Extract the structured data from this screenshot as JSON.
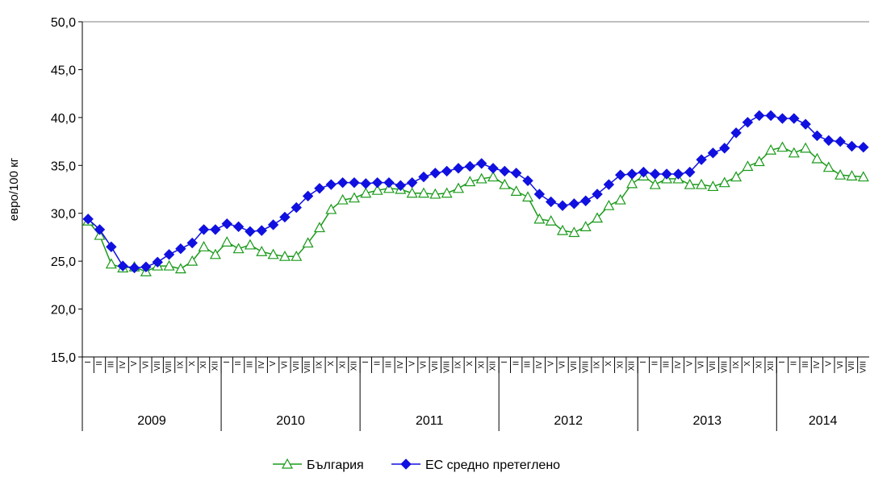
{
  "chart_data": {
    "type": "line",
    "y_label": "евро/100 кг",
    "ylim": [
      15,
      50
    ],
    "yticks": [
      {
        "value": 15,
        "label": "15,0"
      },
      {
        "value": 20,
        "label": "20,0"
      },
      {
        "value": 25,
        "label": "25,0"
      },
      {
        "value": 30,
        "label": "30,0"
      },
      {
        "value": 35,
        "label": "35,0"
      },
      {
        "value": 40,
        "label": "40,0"
      },
      {
        "value": 45,
        "label": "45,0"
      },
      {
        "value": 50,
        "label": "50,0"
      }
    ],
    "categories": [
      "I",
      "II",
      "III",
      "IV",
      "V",
      "VI",
      "VII",
      "VIII",
      "IX",
      "X",
      "XI",
      "XII",
      "I",
      "II",
      "III",
      "IV",
      "V",
      "VI",
      "VII",
      "VIII",
      "IX",
      "X",
      "XI",
      "XII",
      "I",
      "II",
      "III",
      "IV",
      "V",
      "VI",
      "VII",
      "VIII",
      "IX",
      "X",
      "XI",
      "XII",
      "I",
      "II",
      "III",
      "IV",
      "V",
      "VI",
      "VII",
      "VIII",
      "IX",
      "X",
      "XI",
      "XII",
      "I",
      "II",
      "III",
      "IV",
      "V",
      "VI",
      "VII",
      "VIII",
      "IX",
      "X",
      "XI",
      "XII",
      "I",
      "II",
      "III",
      "IV",
      "V",
      "VI",
      "VII",
      "VIII"
    ],
    "years": [
      "2009",
      "2010",
      "2011",
      "2012",
      "2013",
      "2014"
    ],
    "series": [
      {
        "name": "България",
        "color": "#1a9a1a",
        "marker": "triangle",
        "values": [
          29.2,
          27.7,
          24.7,
          24.3,
          24.4,
          23.9,
          24.5,
          24.5,
          24.2,
          25.0,
          26.5,
          25.7,
          27.0,
          26.3,
          26.7,
          26.0,
          25.7,
          25.5,
          25.5,
          26.9,
          28.5,
          30.4,
          31.4,
          31.6,
          32.1,
          32.4,
          32.6,
          32.5,
          32.1,
          32.1,
          32.0,
          32.1,
          32.6,
          33.3,
          33.6,
          33.8,
          33.0,
          32.3,
          31.7,
          29.4,
          29.2,
          28.2,
          28.0,
          28.6,
          29.5,
          30.8,
          31.4,
          33.1,
          33.9,
          33.0,
          33.6,
          33.6,
          33.0,
          33.0,
          32.8,
          33.2,
          33.8,
          34.9,
          35.4,
          36.6,
          36.9,
          36.3,
          36.8,
          35.7,
          34.8,
          34.0,
          33.9,
          33.8
        ]
      },
      {
        "name": "ЕС средно претеглено",
        "color": "#1010e0",
        "marker": "diamond",
        "values": [
          29.4,
          28.3,
          26.5,
          24.5,
          24.3,
          24.4,
          24.9,
          25.7,
          26.3,
          26.9,
          28.3,
          28.3,
          28.9,
          28.6,
          28.1,
          28.2,
          28.8,
          29.6,
          30.6,
          31.8,
          32.6,
          33.0,
          33.2,
          33.2,
          33.1,
          33.2,
          33.2,
          32.9,
          33.2,
          33.8,
          34.2,
          34.4,
          34.7,
          34.9,
          35.2,
          34.7,
          34.4,
          34.2,
          33.4,
          32.0,
          31.2,
          30.8,
          31.0,
          31.3,
          32.0,
          33.0,
          34.0,
          34.1,
          34.3,
          34.1,
          34.1,
          34.1,
          34.3,
          35.6,
          36.3,
          36.8,
          38.4,
          39.5,
          40.2,
          40.2,
          39.9,
          39.9,
          39.3,
          38.1,
          37.6,
          37.5,
          37.0,
          36.9
        ]
      }
    ]
  }
}
